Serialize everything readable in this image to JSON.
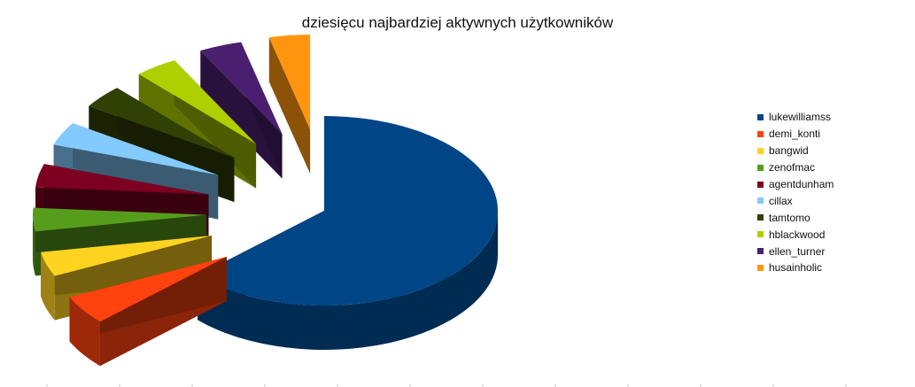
{
  "chart_data": {
    "type": "pie",
    "title": "dziesięcu najbardziej aktywnych użytkowników",
    "legend_position": "right",
    "three_d": true,
    "exploded": true,
    "series": [
      {
        "name": "lukewilliamss",
        "value": 63.0,
        "color": "#004586"
      },
      {
        "name": "demi_konti",
        "value": 5.0,
        "color": "#ff420e"
      },
      {
        "name": "bangwid",
        "value": 4.2,
        "color": "#ffd320"
      },
      {
        "name": "zenofmac",
        "value": 4.0,
        "color": "#579d1c"
      },
      {
        "name": "agentdunham",
        "value": 4.0,
        "color": "#7e0021"
      },
      {
        "name": "cillax",
        "value": 4.0,
        "color": "#83caff"
      },
      {
        "name": "tamtomo",
        "value": 4.0,
        "color": "#314004"
      },
      {
        "name": "hblackwood",
        "value": 4.0,
        "color": "#aecf00"
      },
      {
        "name": "ellen_turner",
        "value": 4.0,
        "color": "#4b1f6f"
      },
      {
        "name": "husainholic",
        "value": 3.8,
        "color": "#ff950e"
      }
    ]
  }
}
